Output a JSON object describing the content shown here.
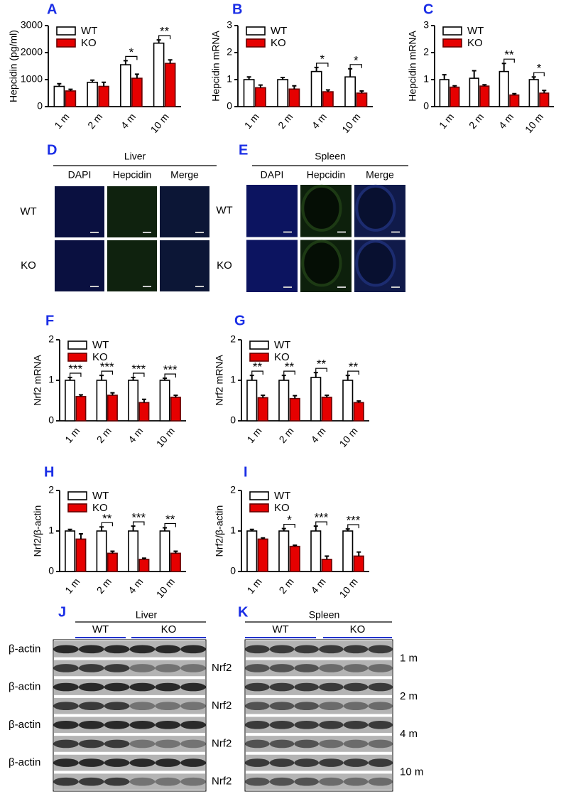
{
  "chart_data": [
    {
      "type": "bar",
      "panel": "A",
      "y_label": "Hepcidin (pg/ml)",
      "categories": [
        "1 m",
        "2 m",
        "4 m",
        "10 m"
      ],
      "series": [
        {
          "name": "WT",
          "color": "#ffffff",
          "values": [
            750,
            900,
            1550,
            2350
          ],
          "errors": [
            100,
            80,
            150,
            120
          ]
        },
        {
          "name": "KO",
          "color": "#e60000",
          "values": [
            580,
            750,
            1050,
            1600
          ],
          "errors": [
            60,
            150,
            150,
            130
          ]
        }
      ],
      "annotations": [
        null,
        null,
        "*",
        "**"
      ],
      "ylim": [
        0,
        3000
      ],
      "yticks": [
        0,
        1000,
        2000,
        3000
      ]
    },
    {
      "type": "bar",
      "panel": "B",
      "y_label": "Hepcidin mRNA",
      "categories": [
        "1 m",
        "2 m",
        "4 m",
        "10 m"
      ],
      "series": [
        {
          "name": "WT",
          "color": "#ffffff",
          "values": [
            1.0,
            1.0,
            1.3,
            1.1
          ],
          "errors": [
            0.1,
            0.08,
            0.15,
            0.3
          ]
        },
        {
          "name": "KO",
          "color": "#e60000",
          "values": [
            0.7,
            0.65,
            0.55,
            0.5
          ],
          "errors": [
            0.1,
            0.12,
            0.07,
            0.08
          ]
        }
      ],
      "annotations": [
        null,
        null,
        "*",
        "*"
      ],
      "ylim": [
        0,
        3
      ],
      "yticks": [
        0,
        1,
        2,
        3
      ]
    },
    {
      "type": "bar",
      "panel": "C",
      "y_label": "Hepcidin mRNA",
      "categories": [
        "1 m",
        "2 m",
        "4 m",
        "10 m"
      ],
      "series": [
        {
          "name": "WT",
          "color": "#ffffff",
          "values": [
            1.0,
            1.05,
            1.3,
            1.0
          ],
          "errors": [
            0.18,
            0.28,
            0.3,
            0.1
          ]
        },
        {
          "name": "KO",
          "color": "#e60000",
          "values": [
            0.72,
            0.76,
            0.43,
            0.5
          ],
          "errors": [
            0.05,
            0.05,
            0.05,
            0.1
          ]
        }
      ],
      "annotations": [
        null,
        null,
        "**",
        "*"
      ],
      "ylim": [
        0,
        3
      ],
      "yticks": [
        0,
        1,
        2,
        3
      ]
    },
    {
      "type": "bar",
      "panel": "F",
      "y_label": "Nrf2 mRNA",
      "categories": [
        "1 m",
        "2 m",
        "4 m",
        "10 m"
      ],
      "series": [
        {
          "name": "WT",
          "color": "#ffffff",
          "values": [
            1.0,
            1.0,
            1.0,
            1.0
          ],
          "errors": [
            0.07,
            0.12,
            0.07,
            0.05
          ]
        },
        {
          "name": "KO",
          "color": "#e60000",
          "values": [
            0.6,
            0.63,
            0.45,
            0.58
          ],
          "errors": [
            0.04,
            0.06,
            0.08,
            0.05
          ]
        }
      ],
      "annotations": [
        "***",
        "***",
        "***",
        "***"
      ],
      "ylim": [
        0,
        2
      ],
      "yticks": [
        0,
        1,
        2
      ]
    },
    {
      "type": "bar",
      "panel": "G",
      "y_label": "Nrf2 mRNA",
      "categories": [
        "1 m",
        "2 m",
        "4 m",
        "10 m"
      ],
      "series": [
        {
          "name": "WT",
          "color": "#ffffff",
          "values": [
            1.0,
            1.0,
            1.07,
            1.0
          ],
          "errors": [
            0.12,
            0.12,
            0.12,
            0.12
          ]
        },
        {
          "name": "KO",
          "color": "#e60000",
          "values": [
            0.57,
            0.55,
            0.58,
            0.45
          ],
          "errors": [
            0.06,
            0.07,
            0.05,
            0.04
          ]
        }
      ],
      "annotations": [
        "**",
        "**",
        "**",
        "**"
      ],
      "ylim": [
        0,
        2
      ],
      "yticks": [
        0,
        1,
        2
      ]
    },
    {
      "type": "bar",
      "panel": "H",
      "y_label": "Nrf2/β-actin",
      "categories": [
        "1 m",
        "2 m",
        "4 m",
        "10 m"
      ],
      "series": [
        {
          "name": "WT",
          "color": "#ffffff",
          "values": [
            1.0,
            1.0,
            1.0,
            1.0
          ],
          "errors": [
            0.04,
            0.1,
            0.12,
            0.08
          ]
        },
        {
          "name": "KO",
          "color": "#e60000",
          "values": [
            0.8,
            0.45,
            0.3,
            0.45
          ],
          "errors": [
            0.13,
            0.05,
            0.03,
            0.05
          ]
        }
      ],
      "annotations": [
        null,
        "**",
        "***",
        "**"
      ],
      "ylim": [
        0,
        2
      ],
      "yticks": [
        0,
        1,
        2
      ]
    },
    {
      "type": "bar",
      "panel": "I",
      "y_label": "Nrf2/β-actin",
      "categories": [
        "1 m",
        "2 m",
        "4 m",
        "10 m"
      ],
      "series": [
        {
          "name": "WT",
          "color": "#ffffff",
          "values": [
            1.0,
            1.0,
            1.0,
            1.0
          ],
          "errors": [
            0.04,
            0.06,
            0.12,
            0.05
          ]
        },
        {
          "name": "KO",
          "color": "#e60000",
          "values": [
            0.8,
            0.62,
            0.3,
            0.38
          ],
          "errors": [
            0.03,
            0.03,
            0.08,
            0.1
          ]
        }
      ],
      "annotations": [
        null,
        "*",
        "***",
        "***"
      ],
      "ylim": [
        0,
        2
      ],
      "yticks": [
        0,
        1,
        2
      ]
    }
  ],
  "micrographs": [
    {
      "panel": "D",
      "tissue": "Liver",
      "columns": [
        "DAPI",
        "Hepcidin",
        "Merge"
      ],
      "rows": [
        "WT",
        "KO"
      ]
    },
    {
      "panel": "E",
      "tissue": "Spleen",
      "columns": [
        "DAPI",
        "Hepcidin",
        "Merge"
      ],
      "rows": [
        "WT",
        "KO"
      ]
    }
  ],
  "blots": [
    {
      "panel": "J",
      "tissue": "Liver",
      "groups": [
        "WT",
        "KO"
      ],
      "left_labels": [
        "β-actin",
        "β-actin",
        "β-actin",
        "β-actin"
      ],
      "right_labels": [
        "Nrf2",
        "Nrf2",
        "Nrf2",
        "Nrf2"
      ]
    },
    {
      "panel": "K",
      "tissue": "Spleen",
      "groups": [
        "WT",
        "KO"
      ],
      "right_labels": [
        "1 m",
        "2 m",
        "4 m",
        "10 m"
      ]
    }
  ]
}
